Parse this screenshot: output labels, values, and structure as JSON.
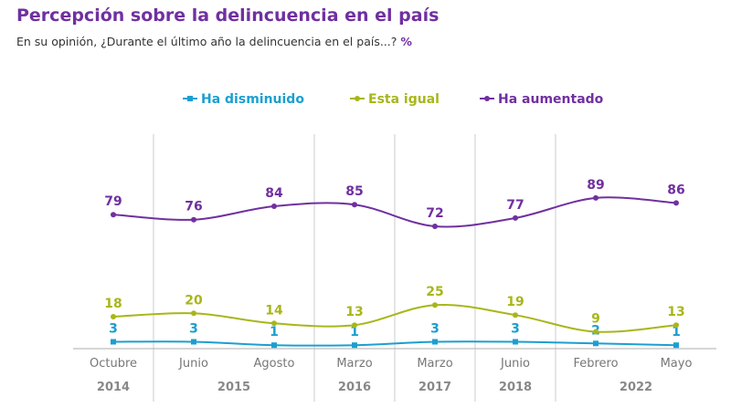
{
  "title": "Percepción sobre la delincuencia en el país",
  "subtitle": "En su opinión, ¿Durante el último año la delincuencia en el país...?",
  "unit": "%",
  "chart_data": {
    "type": "line",
    "categories": [
      "Octubre",
      "Junio",
      "Agosto",
      "Marzo",
      "Marzo",
      "Junio",
      "Febrero",
      "Mayo"
    ],
    "years": [
      {
        "label": "2014",
        "from": 0,
        "to": 0
      },
      {
        "label": "2015",
        "from": 1,
        "to": 2
      },
      {
        "label": "2016",
        "from": 3,
        "to": 3
      },
      {
        "label": "2017",
        "from": 4,
        "to": 4
      },
      {
        "label": "2018",
        "from": 5,
        "to": 5
      },
      {
        "label": "2022",
        "from": 6,
        "to": 7
      }
    ],
    "series": [
      {
        "name": "Ha disminuido",
        "color": "#1b9fd0",
        "marker": "square",
        "values": [
          3,
          3,
          1,
          1,
          3,
          3,
          2,
          1
        ]
      },
      {
        "name": "Esta igual",
        "color": "#a8b61a",
        "marker": "dot",
        "values": [
          18,
          20,
          14,
          13,
          25,
          19,
          9,
          13
        ]
      },
      {
        "name": "Ha aumentado",
        "color": "#7030a0",
        "marker": "dot",
        "values": [
          79,
          76,
          84,
          85,
          72,
          77,
          89,
          86
        ]
      }
    ],
    "legend_position": "top-center",
    "grid": "vertical separators between years",
    "ylim": [
      0,
      100
    ]
  }
}
